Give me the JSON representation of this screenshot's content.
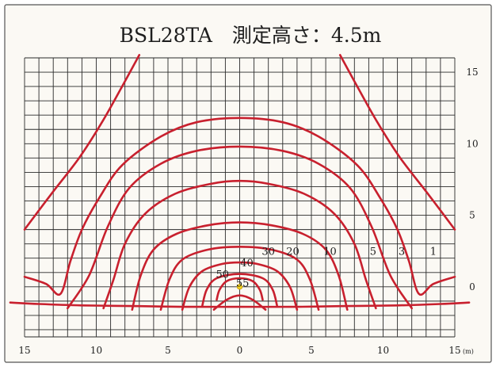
{
  "chart_data": {
    "type": "contour",
    "title": "BSL28TA　測定高さ：4.5m",
    "x_unit": "(m)",
    "x_ticks": [
      {
        "value": -15,
        "label": "15"
      },
      {
        "value": -10,
        "label": "10"
      },
      {
        "value": -5,
        "label": "5"
      },
      {
        "value": 0,
        "label": "0"
      },
      {
        "value": 5,
        "label": "5"
      },
      {
        "value": 10,
        "label": "10"
      },
      {
        "value": 15,
        "label": "15"
      }
    ],
    "y_ticks": [
      {
        "value": 15,
        "label": "15"
      },
      {
        "value": 10,
        "label": "10"
      },
      {
        "value": 5,
        "label": "5"
      },
      {
        "value": 0,
        "label": "0"
      }
    ],
    "xlim": [
      -15,
      15
    ],
    "ylim": [
      -3.5,
      16
    ],
    "grid": true,
    "grid_step": 1,
    "line_color": "#c8202e",
    "source_color": "#f2d21b",
    "contours": [
      {
        "label": "1",
        "label_at": [
          13.5,
          2.5
        ],
        "points": [
          [
            -16,
            -1.1
          ],
          [
            -14,
            -1.2
          ],
          [
            -11,
            -1.3
          ],
          [
            -7,
            -1.35
          ],
          [
            -4,
            -1.4
          ],
          [
            0,
            -1.4
          ],
          [
            4,
            -1.4
          ],
          [
            7,
            -1.35
          ],
          [
            11,
            -1.3
          ],
          [
            14,
            -1.2
          ],
          [
            16,
            -1.1
          ]
        ]
      },
      {
        "label": "3",
        "label_at": [
          11.3,
          2.5
        ],
        "points": [
          [
            -15,
            4
          ],
          [
            -13.2,
            6.4
          ],
          [
            -11.2,
            9
          ],
          [
            -9.6,
            11.5
          ],
          [
            -8.2,
            14
          ],
          [
            -7,
            16.2
          ]
        ],
        "mirror": true
      },
      {
        "label": "5",
        "label_at": [
          9.3,
          2.5
        ],
        "points": [
          [
            -15,
            0.7
          ],
          [
            -13.5,
            0.2
          ],
          [
            -12.5,
            -0.5
          ],
          [
            -11.8,
            1.8
          ],
          [
            -11,
            4
          ],
          [
            -9.8,
            6.2
          ],
          [
            -8.2,
            8.5
          ],
          [
            -5.5,
            10.5
          ],
          [
            -3,
            11.5
          ],
          [
            0,
            11.8
          ],
          [
            3,
            11.5
          ],
          [
            5.5,
            10.5
          ],
          [
            8.2,
            8.5
          ],
          [
            9.8,
            6.2
          ],
          [
            11,
            4
          ],
          [
            11.8,
            1.8
          ],
          [
            12.5,
            -0.5
          ],
          [
            13.5,
            0.2
          ],
          [
            15,
            0.7
          ]
        ]
      },
      {
        "label": "10",
        "label_at": [
          6.3,
          2.5
        ],
        "points": [
          [
            -12,
            -1.5
          ],
          [
            -10.5,
            0.8
          ],
          [
            -9.2,
            4.2
          ],
          [
            -7.7,
            6.9
          ],
          [
            -5.5,
            8.6
          ],
          [
            -3,
            9.5
          ],
          [
            0,
            9.8
          ],
          [
            3,
            9.5
          ],
          [
            5.5,
            8.6
          ],
          [
            7.7,
            6.9
          ],
          [
            9.2,
            4.2
          ],
          [
            10.5,
            0.8
          ],
          [
            12,
            -1.5
          ]
        ]
      },
      {
        "label": "20",
        "label_at": [
          3.7,
          2.5
        ],
        "points": [
          [
            -9.5,
            -1.5
          ],
          [
            -8.8,
            0.5
          ],
          [
            -8,
            3
          ],
          [
            -6.6,
            5.1
          ],
          [
            -4.5,
            6.5
          ],
          [
            -2,
            7.2
          ],
          [
            0,
            7.4
          ],
          [
            2,
            7.2
          ],
          [
            4.5,
            6.5
          ],
          [
            6.6,
            5.1
          ],
          [
            8,
            3
          ],
          [
            8.8,
            0.5
          ],
          [
            9.5,
            -1.5
          ]
        ]
      },
      {
        "label": "30",
        "label_at": [
          2.0,
          2.5
        ],
        "points": [
          [
            -7.5,
            -1.6
          ],
          [
            -6.9,
            0.8
          ],
          [
            -6,
            2.6
          ],
          [
            -4.4,
            3.7
          ],
          [
            -2.2,
            4.3
          ],
          [
            0,
            4.5
          ],
          [
            2.2,
            4.3
          ],
          [
            4.4,
            3.7
          ],
          [
            6,
            2.6
          ],
          [
            6.9,
            0.8
          ],
          [
            7.5,
            -1.6
          ]
        ]
      },
      {
        "label": "",
        "label_at": [
          0,
          0
        ],
        "points": [
          [
            -5.5,
            -1.6
          ],
          [
            -4.9,
            0.5
          ],
          [
            -4,
            1.9
          ],
          [
            -2.2,
            2.6
          ],
          [
            0,
            2.8
          ],
          [
            2.2,
            2.6
          ],
          [
            4,
            1.9
          ],
          [
            4.9,
            0.5
          ],
          [
            5.5,
            -1.6
          ]
        ]
      },
      {
        "label": "40",
        "label_at": [
          0.5,
          1.7
        ],
        "points": [
          [
            -4,
            -1.6
          ],
          [
            -3.5,
            0
          ],
          [
            -2.6,
            1.1
          ],
          [
            -1.2,
            1.6
          ],
          [
            0,
            1.7
          ],
          [
            1.2,
            1.6
          ],
          [
            2.6,
            1.1
          ],
          [
            3.5,
            0
          ],
          [
            4,
            -1.6
          ]
        ]
      },
      {
        "label": "50",
        "label_at": [
          -1.2,
          0.9
        ],
        "points": [
          [
            -2.6,
            -1.3
          ],
          [
            -2.3,
            -0.2
          ],
          [
            -1.6,
            0.6
          ],
          [
            0,
            0.9
          ],
          [
            1.6,
            0.6
          ],
          [
            2.3,
            -0.2
          ],
          [
            2.6,
            -1.3
          ]
        ]
      },
      {
        "label": "55",
        "label_at": [
          0.2,
          0.3
        ],
        "points": [
          [
            -1.6,
            -0.9
          ],
          [
            -1.4,
            -0.2
          ],
          [
            -0.9,
            0.4
          ],
          [
            0,
            0.6
          ],
          [
            0.9,
            0.4
          ],
          [
            1.4,
            -0.2
          ],
          [
            1.6,
            -0.9
          ]
        ]
      },
      {
        "label": "",
        "label_at": [
          0,
          0
        ],
        "points": [
          [
            -1.8,
            -1.6
          ],
          [
            -0.9,
            -0.9
          ],
          [
            0,
            -0.6
          ],
          [
            0.9,
            -0.9
          ],
          [
            1.8,
            -1.6
          ]
        ]
      }
    ]
  }
}
